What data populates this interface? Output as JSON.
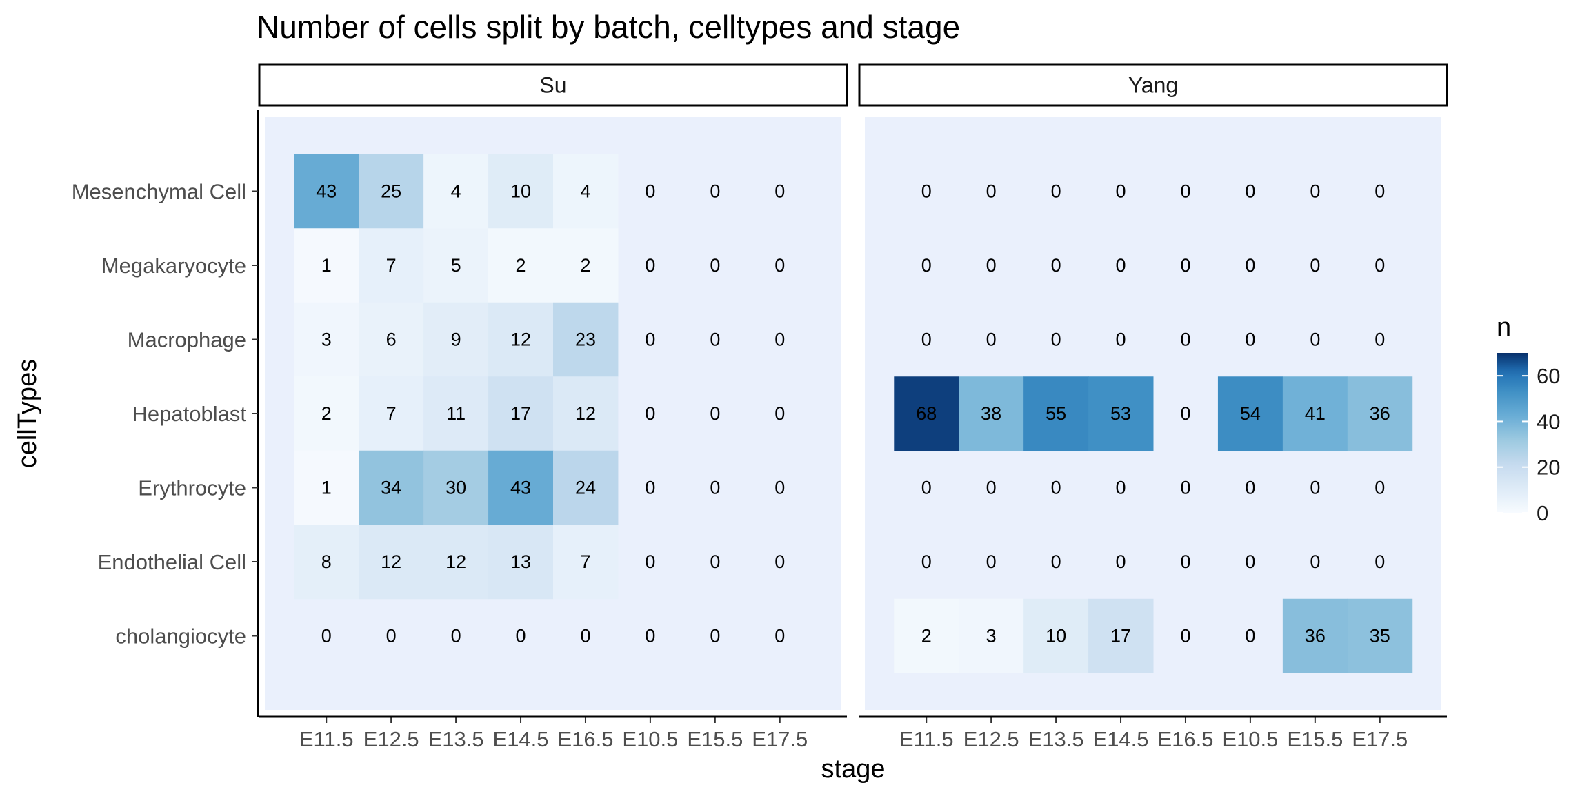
{
  "chart_data": {
    "type": "heatmap",
    "title": "Number of cells split by batch, celltypes and stage",
    "xlabel": "stage",
    "ylabel": "cellTypes",
    "x_categories": [
      "E11.5",
      "E12.5",
      "E13.5",
      "E14.5",
      "E16.5",
      "E10.5",
      "E15.5",
      "E17.5"
    ],
    "y_categories": [
      "Mesenchymal Cell",
      "Megakaryocyte",
      "Macrophage",
      "Hepatoblast",
      "Erythrocyte",
      "Endothelial Cell",
      "cholangiocyte"
    ],
    "facets": [
      {
        "name": "Su",
        "values": [
          [
            43,
            25,
            4,
            10,
            4,
            0,
            0,
            0
          ],
          [
            1,
            7,
            5,
            2,
            2,
            0,
            0,
            0
          ],
          [
            3,
            6,
            9,
            12,
            23,
            0,
            0,
            0
          ],
          [
            2,
            7,
            11,
            17,
            12,
            0,
            0,
            0
          ],
          [
            1,
            34,
            30,
            43,
            24,
            0,
            0,
            0
          ],
          [
            8,
            12,
            12,
            13,
            7,
            0,
            0,
            0
          ],
          [
            0,
            0,
            0,
            0,
            0,
            0,
            0,
            0
          ]
        ]
      },
      {
        "name": "Yang",
        "values": [
          [
            0,
            0,
            0,
            0,
            0,
            0,
            0,
            0
          ],
          [
            0,
            0,
            0,
            0,
            0,
            0,
            0,
            0
          ],
          [
            0,
            0,
            0,
            0,
            0,
            0,
            0,
            0
          ],
          [
            68,
            38,
            55,
            53,
            0,
            54,
            41,
            36
          ],
          [
            0,
            0,
            0,
            0,
            0,
            0,
            0,
            0
          ],
          [
            0,
            0,
            0,
            0,
            0,
            0,
            0,
            0
          ],
          [
            2,
            3,
            10,
            17,
            0,
            0,
            36,
            35
          ]
        ]
      }
    ],
    "legend": {
      "title": "n",
      "position": "right",
      "range": [
        0,
        70
      ],
      "ticks": [
        0,
        20,
        40,
        60
      ],
      "low_color": "#f7fbff",
      "high_color": "#08306b"
    },
    "missing_color": "#eaf0fc",
    "grid": false
  }
}
